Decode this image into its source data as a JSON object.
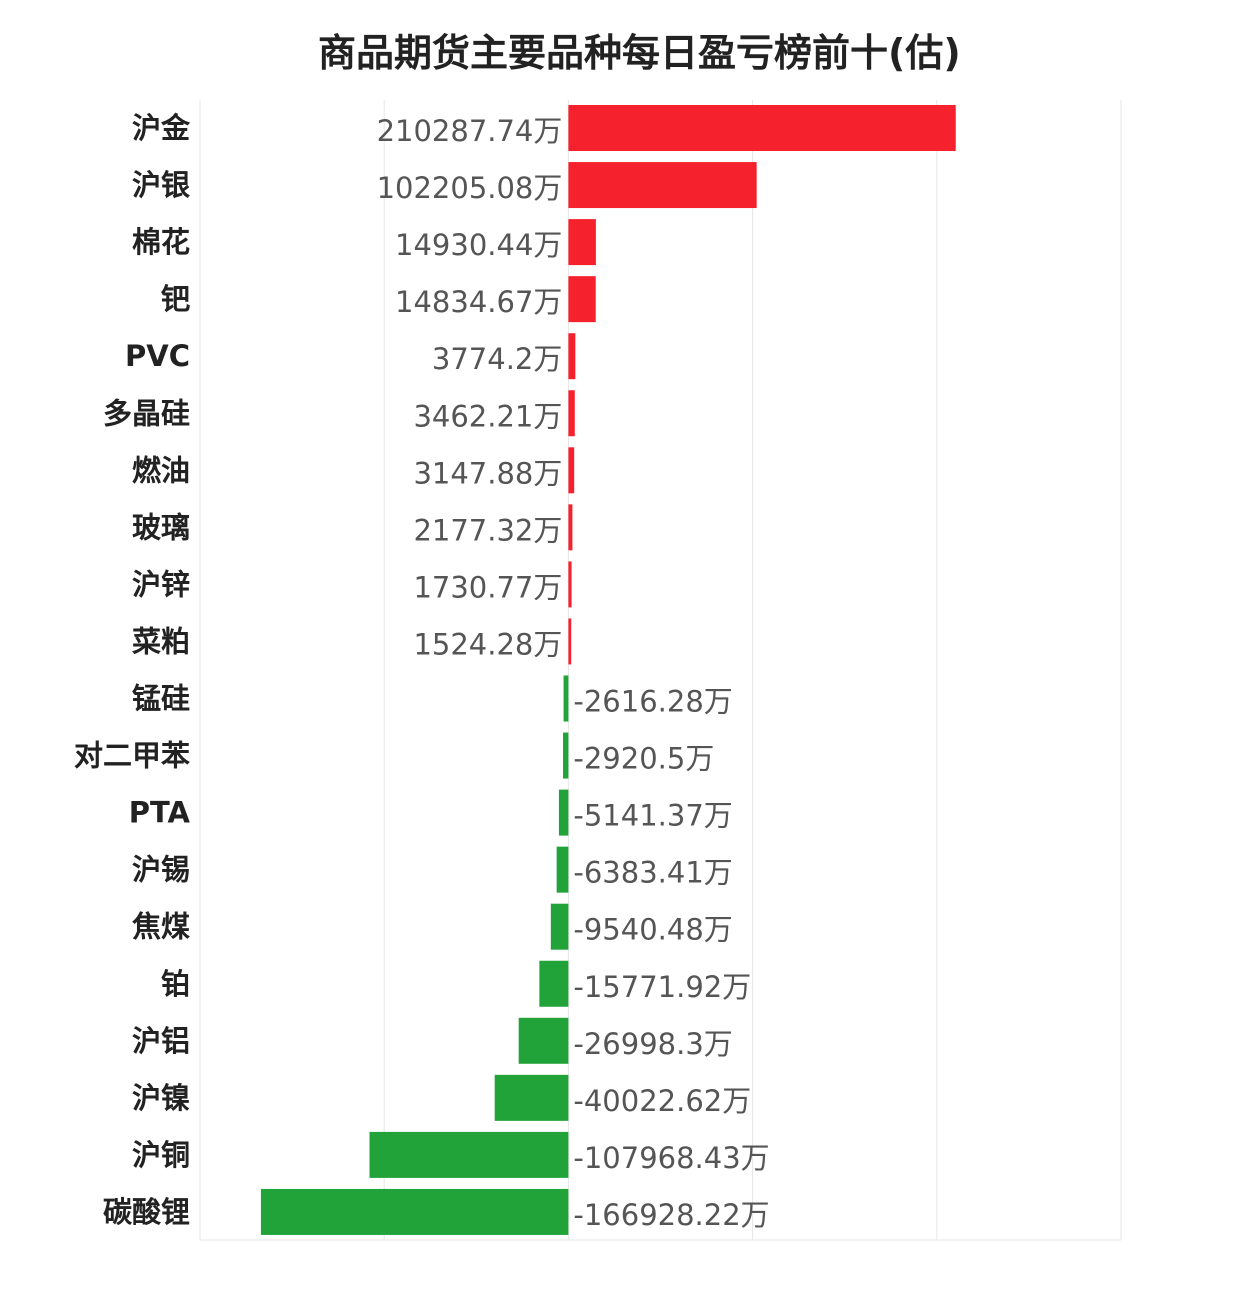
{
  "chart_data": {
    "type": "bar",
    "orientation": "horizontal",
    "title": "商品期货主要品种每日盈亏榜前十(估)",
    "unit_suffix": "万",
    "categories": [
      "沪金",
      "沪银",
      "棉花",
      "钯",
      "PVC",
      "多晶硅",
      "燃油",
      "玻璃",
      "沪锌",
      "菜粕",
      "锰硅",
      "对二甲苯",
      "PTA",
      "沪锡",
      "焦煤",
      "铂",
      "沪铝",
      "沪镍",
      "沪铜",
      "碳酸锂"
    ],
    "values": [
      210287.74,
      102205.08,
      14930.44,
      14834.67,
      3774.2,
      3462.21,
      3147.88,
      2177.32,
      1730.77,
      1524.28,
      -2616.28,
      -2920.5,
      -5141.37,
      -6383.41,
      -9540.48,
      -15771.92,
      -26998.3,
      -40022.62,
      -107968.43,
      -166928.22
    ],
    "value_labels": [
      "210287.74万",
      "102205.08万",
      "14930.44万",
      "14834.67万",
      "3774.2万",
      "3462.21万",
      "3147.88万",
      "2177.32万",
      "1730.77万",
      "1524.28万",
      "-2616.28万",
      "-2920.5万",
      "-5141.37万",
      "-6383.41万",
      "-9540.48万",
      "-15771.92万",
      "-26998.3万",
      "-40022.62万",
      "-107968.43万",
      "-166928.22万"
    ],
    "xlim": [
      -200000,
      300000
    ],
    "grid": true,
    "legend": "none",
    "colors": {
      "positive": "#f5222d",
      "negative": "#22a33a",
      "grid": "#e6e6e6"
    }
  }
}
